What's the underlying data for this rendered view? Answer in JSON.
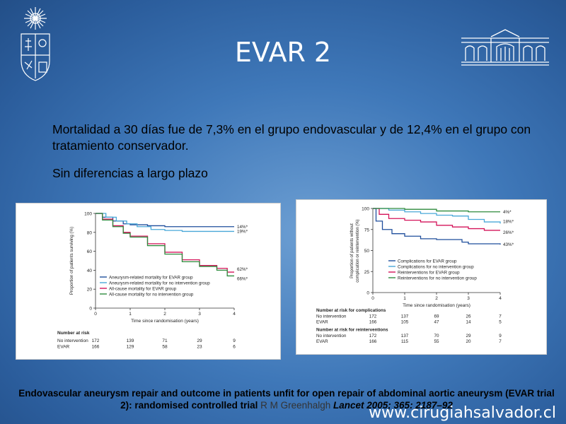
{
  "slide": {
    "title": "EVAR 2",
    "paragraph1": "Mortalidad a 30 días fue de 7,3% en el grupo endovascular y de 12,4% en el grupo con tratamiento conservador.",
    "paragraph2": "Sin diferencias a largo plazo",
    "citation_title": "Endovascular aneurysm repair and outcome in patients unfit for open repair of abdominal aortic aneurysm (EVAR trial 2): randomised controlled trial",
    "citation_authors": "R M Greenhalgh",
    "citation_journal": "Lancet 2005; 365: 2187–92",
    "website": "www.cirugiahsalvador.cl"
  },
  "colors": {
    "accent_dark_blue": "#1f4e9c",
    "light_blue": "#49a8d8",
    "red": "#d4145a",
    "green": "#2e8b3d"
  },
  "chart_data": [
    {
      "type": "line",
      "ylabel": "Proportion of patients surviving (%)",
      "xlabel": "Time since randomisation (years)",
      "xlim": [
        0,
        4
      ],
      "ylim": [
        0,
        100
      ],
      "xticks": [
        "0",
        "1",
        "2",
        "3",
        "4"
      ],
      "yticks": [
        "0",
        "20",
        "40",
        "60",
        "80",
        "100"
      ],
      "series": [
        {
          "name": "Aneurysm-related mortality for EVAR group",
          "color": "#1f4e9c",
          "end_label": "14%*",
          "points": [
            [
              0,
              100
            ],
            [
              0.2,
              96
            ],
            [
              0.5,
              92
            ],
            [
              0.8,
              89
            ],
            [
              1.0,
              88
            ],
            [
              1.5,
              87
            ],
            [
              2.0,
              86
            ],
            [
              2.5,
              86
            ],
            [
              3.0,
              86
            ],
            [
              4.0,
              86
            ]
          ]
        },
        {
          "name": "Aneurysm-related mortality for no intervention group",
          "color": "#49a8d8",
          "end_label": "19%*",
          "points": [
            [
              0,
              100
            ],
            [
              0.3,
              96
            ],
            [
              0.6,
              92
            ],
            [
              0.9,
              89
            ],
            [
              1.2,
              86
            ],
            [
              1.6,
              83
            ],
            [
              2.0,
              82
            ],
            [
              2.5,
              81
            ],
            [
              3.0,
              81
            ],
            [
              4.0,
              81
            ]
          ]
        },
        {
          "name": "All-cause mortality for EVAR group",
          "color": "#d4145a",
          "end_label": "62%*",
          "points": [
            [
              0,
              100
            ],
            [
              0.2,
              94
            ],
            [
              0.5,
              87
            ],
            [
              0.8,
              80
            ],
            [
              1.0,
              76
            ],
            [
              1.5,
              68
            ],
            [
              2.0,
              59
            ],
            [
              2.5,
              51
            ],
            [
              3.0,
              45
            ],
            [
              3.5,
              42
            ],
            [
              3.8,
              38
            ],
            [
              4.0,
              38
            ]
          ]
        },
        {
          "name": "All-cause mortality for no intervention group",
          "color": "#2e8b3d",
          "end_label": "66%*",
          "points": [
            [
              0,
              100
            ],
            [
              0.2,
              93
            ],
            [
              0.5,
              86
            ],
            [
              0.8,
              79
            ],
            [
              1.0,
              75
            ],
            [
              1.5,
              66
            ],
            [
              2.0,
              57
            ],
            [
              2.5,
              49
            ],
            [
              3.0,
              44
            ],
            [
              3.5,
              40
            ],
            [
              3.8,
              34
            ],
            [
              4.0,
              34
            ]
          ]
        }
      ],
      "risk_table": {
        "heading": "Number at risk",
        "rows": [
          {
            "label": "No intervention",
            "values": [
              "172",
              "139",
              "71",
              "29",
              "9"
            ]
          },
          {
            "label": "EVAR",
            "values": [
              "166",
              "129",
              "58",
              "23",
              "6"
            ]
          }
        ]
      }
    },
    {
      "type": "line",
      "ylabel": "Proportion of patients without complication or reintervention (%)",
      "xlabel": "Time since randomisation (years)",
      "xlim": [
        0,
        4
      ],
      "ylim": [
        0,
        100
      ],
      "xticks": [
        "0",
        "1",
        "2",
        "3",
        "4"
      ],
      "yticks": [
        "0",
        "25",
        "50",
        "75",
        "100"
      ],
      "series": [
        {
          "name": "Complications for EVAR group",
          "color": "#1f4e9c",
          "end_label": "43%*",
          "points": [
            [
              0,
              100
            ],
            [
              0.1,
              85
            ],
            [
              0.3,
              75
            ],
            [
              0.6,
              70
            ],
            [
              1.0,
              67
            ],
            [
              1.5,
              64
            ],
            [
              2.0,
              63
            ],
            [
              2.8,
              60
            ],
            [
              3.0,
              58
            ],
            [
              4.0,
              57
            ]
          ]
        },
        {
          "name": "Complications for no intervention group",
          "color": "#49a8d8",
          "end_label": "18%*",
          "points": [
            [
              0,
              100
            ],
            [
              0.5,
              98
            ],
            [
              1.0,
              96
            ],
            [
              1.5,
              94
            ],
            [
              2.0,
              92
            ],
            [
              2.5,
              91
            ],
            [
              3.0,
              87
            ],
            [
              3.5,
              84
            ],
            [
              4.0,
              82
            ]
          ]
        },
        {
          "name": "Reinterventions for EVAR group",
          "color": "#d4145a",
          "end_label": "26%*",
          "points": [
            [
              0,
              100
            ],
            [
              0.2,
              93
            ],
            [
              0.5,
              88
            ],
            [
              1.0,
              86
            ],
            [
              1.5,
              84
            ],
            [
              2.0,
              80
            ],
            [
              2.5,
              78
            ],
            [
              3.0,
              76
            ],
            [
              3.5,
              74
            ],
            [
              4.0,
              74
            ]
          ]
        },
        {
          "name": "Reinterventions for no intervention group",
          "color": "#2e8b3d",
          "end_label": "4%*",
          "points": [
            [
              0,
              100
            ],
            [
              1.0,
              99
            ],
            [
              2.0,
              97
            ],
            [
              3.0,
              96
            ],
            [
              4.0,
              96
            ]
          ]
        }
      ],
      "risk_tables": [
        {
          "heading": "Number at risk for complications",
          "rows": [
            {
              "label": "No intervention",
              "values": [
                "172",
                "137",
                "69",
                "26",
                "7"
              ]
            },
            {
              "label": "EVAR",
              "values": [
                "166",
                "105",
                "47",
                "14",
                "5"
              ]
            }
          ]
        },
        {
          "heading": "Number at risk for reinterventions",
          "rows": [
            {
              "label": "No intervention",
              "values": [
                "172",
                "137",
                "70",
                "29",
                "9"
              ]
            },
            {
              "label": "EVAR",
              "values": [
                "166",
                "115",
                "55",
                "20",
                "7"
              ]
            }
          ]
        }
      ]
    }
  ]
}
